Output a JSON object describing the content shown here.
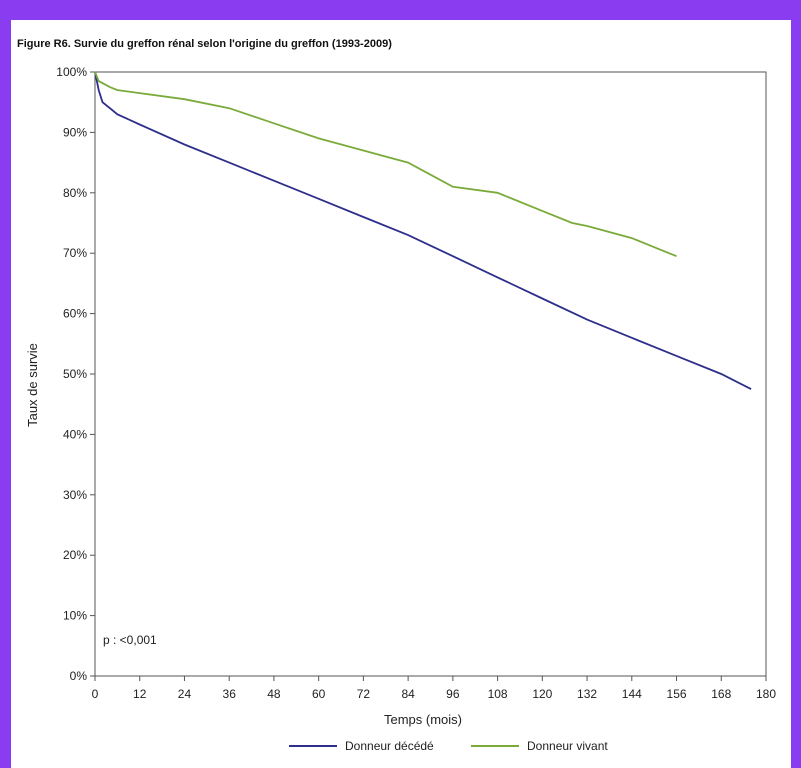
{
  "title": "Figure R6. Survie du greffon rénal selon l'origine du greffon (1993-2009)",
  "chart_data": {
    "type": "line",
    "xlabel": "Temps (mois)",
    "ylabel": "Taux de survie",
    "xlim": [
      0,
      180
    ],
    "ylim": [
      0,
      100
    ],
    "x_ticks": [
      0,
      12,
      24,
      36,
      48,
      60,
      72,
      84,
      96,
      108,
      120,
      132,
      144,
      156,
      168,
      180
    ],
    "y_ticks": [
      0,
      10,
      20,
      30,
      40,
      50,
      60,
      70,
      80,
      90,
      100
    ],
    "y_tick_labels": [
      "0%",
      "10%",
      "20%",
      "30%",
      "40%",
      "50%",
      "60%",
      "70%",
      "80%",
      "90%",
      "100%"
    ],
    "annotation": "p : <0,001",
    "legend_position": "bottom",
    "grid": false,
    "series": [
      {
        "name": "Donneur décédé",
        "color": "#2e2e8c",
        "x": [
          0,
          1,
          2,
          4,
          6,
          12,
          24,
          36,
          48,
          60,
          72,
          84,
          96,
          108,
          120,
          132,
          144,
          156,
          168,
          176
        ],
        "y": [
          100,
          97,
          95,
          94,
          93,
          91.3,
          88,
          85,
          82,
          79,
          76,
          73,
          69.5,
          66,
          62.5,
          59,
          56,
          53,
          50,
          47.5
        ]
      },
      {
        "name": "Donneur vivant",
        "color": "#7aab3a",
        "x": [
          0,
          1,
          4,
          6,
          12,
          24,
          36,
          48,
          60,
          72,
          84,
          90,
          96,
          108,
          120,
          128,
          132,
          144,
          150,
          156
        ],
        "y": [
          100,
          98.5,
          97.5,
          97,
          96.5,
          95.5,
          94,
          91.5,
          89,
          87,
          85,
          83,
          81,
          80,
          77,
          75,
          74.5,
          72.5,
          71,
          69.5
        ]
      }
    ]
  }
}
